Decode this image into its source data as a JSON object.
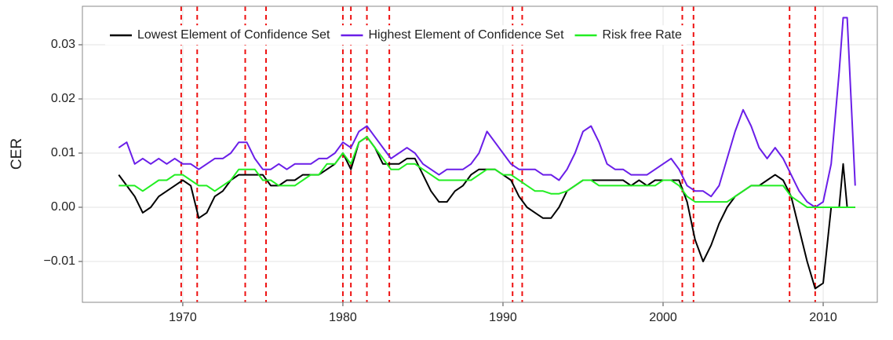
{
  "chart_data": {
    "type": "line",
    "y_label": "CER",
    "xlim": [
      1963.73,
      2013.38
    ],
    "ylim": [
      -0.01754,
      0.0371
    ],
    "xticks": [
      1970,
      1980,
      1990,
      2000,
      2010
    ],
    "yticks": [
      {
        "value": -0.01,
        "label": "−0.01"
      },
      {
        "value": 0,
        "label": "0.00"
      },
      0.01,
      0.02,
      0.03
    ],
    "grid": true,
    "legend": "top",
    "vlines": [
      1969.9,
      1970.9,
      1973.9,
      1975.2,
      1980.0,
      1980.5,
      1981.5,
      1982.9,
      1990.6,
      1991.2,
      2001.2,
      2001.9,
      2007.9,
      2009.5
    ],
    "vline_color": "#ee1111",
    "x": [
      1966,
      1966.5,
      1967,
      1967.5,
      1968,
      1968.5,
      1969,
      1969.5,
      1970,
      1970.5,
      1971,
      1971.5,
      1972,
      1972.5,
      1973,
      1973.5,
      1974,
      1974.5,
      1975,
      1975.5,
      1976,
      1976.5,
      1977,
      1977.5,
      1978,
      1978.5,
      1979,
      1979.5,
      1980,
      1980.5,
      1981,
      1981.5,
      1982,
      1982.5,
      1983,
      1983.5,
      1984,
      1984.5,
      1985,
      1985.5,
      1986,
      1986.5,
      1987,
      1987.5,
      1988,
      1988.5,
      1989,
      1989.5,
      1990,
      1990.5,
      1991,
      1991.5,
      1992,
      1992.5,
      1993,
      1993.5,
      1994,
      1994.5,
      1995,
      1995.5,
      1996,
      1996.5,
      1997,
      1997.5,
      1998,
      1998.5,
      1999,
      1999.5,
      2000,
      2000.5,
      2001,
      2001.5,
      2002,
      2002.5,
      2003,
      2003.5,
      2004,
      2004.5,
      2005,
      2005.5,
      2006,
      2006.5,
      2007,
      2007.5,
      2008,
      2008.5,
      2009,
      2009.5,
      2010,
      2010.5,
      2011,
      2011.25,
      2011.5,
      2012
    ],
    "series": [
      {
        "name": "Lowest Element of Confidence Set",
        "color": "#000000",
        "values": [
          0.006,
          0.004,
          0.002,
          -0.001,
          0.0,
          0.002,
          0.003,
          0.004,
          0.005,
          0.004,
          -0.002,
          -0.001,
          0.002,
          0.003,
          0.005,
          0.006,
          0.006,
          0.006,
          0.006,
          0.004,
          0.004,
          0.005,
          0.005,
          0.006,
          0.006,
          0.006,
          0.007,
          0.008,
          0.01,
          0.007,
          0.012,
          0.013,
          0.011,
          0.008,
          0.008,
          0.008,
          0.009,
          0.009,
          0.006,
          0.003,
          0.001,
          0.001,
          0.003,
          0.004,
          0.006,
          0.007,
          0.007,
          0.007,
          0.006,
          0.005,
          0.002,
          0.0,
          -0.001,
          -0.002,
          -0.002,
          0.0,
          0.003,
          0.004,
          0.005,
          0.005,
          0.005,
          0.005,
          0.005,
          0.005,
          0.004,
          0.005,
          0.004,
          0.005,
          0.005,
          0.005,
          0.005,
          0.001,
          -0.006,
          -0.01,
          -0.007,
          -0.003,
          0.0,
          0.002,
          0.003,
          0.004,
          0.004,
          0.005,
          0.006,
          0.005,
          0.002,
          -0.004,
          -0.01,
          -0.015,
          -0.014,
          0.0,
          0.0,
          0.008,
          0.0,
          0.0
        ]
      },
      {
        "name": "Highest Element of Confidence Set",
        "color": "#6a1ee8",
        "values": [
          0.011,
          0.012,
          0.008,
          0.009,
          0.008,
          0.009,
          0.008,
          0.009,
          0.008,
          0.008,
          0.007,
          0.008,
          0.009,
          0.009,
          0.01,
          0.012,
          0.012,
          0.009,
          0.007,
          0.007,
          0.008,
          0.007,
          0.008,
          0.008,
          0.008,
          0.009,
          0.009,
          0.01,
          0.012,
          0.011,
          0.014,
          0.015,
          0.013,
          0.011,
          0.009,
          0.01,
          0.011,
          0.01,
          0.008,
          0.007,
          0.006,
          0.007,
          0.007,
          0.007,
          0.008,
          0.01,
          0.014,
          0.012,
          0.01,
          0.008,
          0.007,
          0.007,
          0.007,
          0.006,
          0.006,
          0.005,
          0.007,
          0.01,
          0.014,
          0.015,
          0.012,
          0.008,
          0.007,
          0.007,
          0.006,
          0.006,
          0.006,
          0.007,
          0.008,
          0.009,
          0.007,
          0.004,
          0.003,
          0.003,
          0.002,
          0.004,
          0.009,
          0.014,
          0.018,
          0.015,
          0.011,
          0.009,
          0.011,
          0.009,
          0.006,
          0.003,
          0.001,
          0.0,
          0.001,
          0.008,
          0.025,
          0.035,
          0.035,
          0.004
        ]
      },
      {
        "name": "Risk free Rate",
        "color": "#22ee22",
        "values": [
          0.004,
          0.004,
          0.004,
          0.003,
          0.004,
          0.005,
          0.005,
          0.006,
          0.006,
          0.005,
          0.004,
          0.004,
          0.003,
          0.004,
          0.005,
          0.007,
          0.007,
          0.007,
          0.005,
          0.005,
          0.004,
          0.004,
          0.004,
          0.005,
          0.006,
          0.006,
          0.008,
          0.008,
          0.01,
          0.008,
          0.012,
          0.013,
          0.011,
          0.009,
          0.007,
          0.007,
          0.008,
          0.008,
          0.007,
          0.006,
          0.005,
          0.005,
          0.005,
          0.005,
          0.005,
          0.006,
          0.007,
          0.007,
          0.006,
          0.006,
          0.005,
          0.004,
          0.003,
          0.003,
          0.0025,
          0.0025,
          0.003,
          0.004,
          0.005,
          0.005,
          0.004,
          0.004,
          0.004,
          0.004,
          0.004,
          0.004,
          0.004,
          0.004,
          0.005,
          0.005,
          0.004,
          0.002,
          0.001,
          0.001,
          0.001,
          0.001,
          0.001,
          0.002,
          0.003,
          0.004,
          0.004,
          0.004,
          0.004,
          0.004,
          0.002,
          0.001,
          0.0,
          0.0,
          0.0,
          0.0,
          0.0,
          0.0,
          0.0,
          0.0
        ]
      }
    ]
  }
}
